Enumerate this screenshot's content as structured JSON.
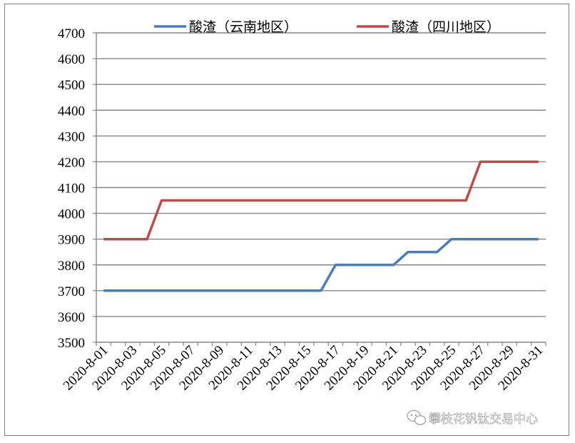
{
  "chart_data": {
    "type": "line",
    "title": "",
    "xlabel": "",
    "ylabel": "",
    "ylim": [
      3500,
      4700
    ],
    "y_ticks": [
      3500,
      3600,
      3700,
      3800,
      3900,
      4000,
      4100,
      4200,
      4300,
      4400,
      4500,
      4600,
      4700
    ],
    "grid": "horizontal",
    "legend_position": "top",
    "x": [
      "2020-8-01",
      "2020-8-02",
      "2020-8-03",
      "2020-8-04",
      "2020-8-05",
      "2020-8-06",
      "2020-8-07",
      "2020-8-08",
      "2020-8-09",
      "2020-8-10",
      "2020-8-11",
      "2020-8-12",
      "2020-8-13",
      "2020-8-14",
      "2020-8-15",
      "2020-8-16",
      "2020-8-17",
      "2020-8-18",
      "2020-8-19",
      "2020-8-20",
      "2020-8-21",
      "2020-8-22",
      "2020-8-23",
      "2020-8-24",
      "2020-8-25",
      "2020-8-26",
      "2020-8-27",
      "2020-8-28",
      "2020-8-29",
      "2020-8-30",
      "2020-8-31"
    ],
    "x_tick_labels": [
      "2020-8-01",
      "2020-8-03",
      "2020-8-05",
      "2020-8-07",
      "2020-8-09",
      "2020-8-11",
      "2020-8-13",
      "2020-8-15",
      "2020-8-17",
      "2020-8-19",
      "2020-8-21",
      "2020-8-23",
      "2020-8-25",
      "2020-8-27",
      "2020-8-29",
      "2020-8-31"
    ],
    "series": [
      {
        "name": "酸渣（云南地区）",
        "color": "#4a7ebb",
        "values": [
          3700,
          3700,
          3700,
          3700,
          3700,
          3700,
          3700,
          3700,
          3700,
          3700,
          3700,
          3700,
          3700,
          3700,
          3700,
          3700,
          3800,
          3800,
          3800,
          3800,
          3800,
          3850,
          3850,
          3850,
          3900,
          3900,
          3900,
          3900,
          3900,
          3900,
          3900
        ]
      },
      {
        "name": "酸渣（四川地区）",
        "color": "#be4b48",
        "values": [
          3900,
          3900,
          3900,
          3900,
          4050,
          4050,
          4050,
          4050,
          4050,
          4050,
          4050,
          4050,
          4050,
          4050,
          4050,
          4050,
          4050,
          4050,
          4050,
          4050,
          4050,
          4050,
          4050,
          4050,
          4050,
          4050,
          4200,
          4200,
          4200,
          4200,
          4200
        ]
      }
    ]
  },
  "watermark": {
    "text": "攀枝花钒钛交易中心",
    "icon": "wechat-icon"
  },
  "gridline_color": "#868686"
}
